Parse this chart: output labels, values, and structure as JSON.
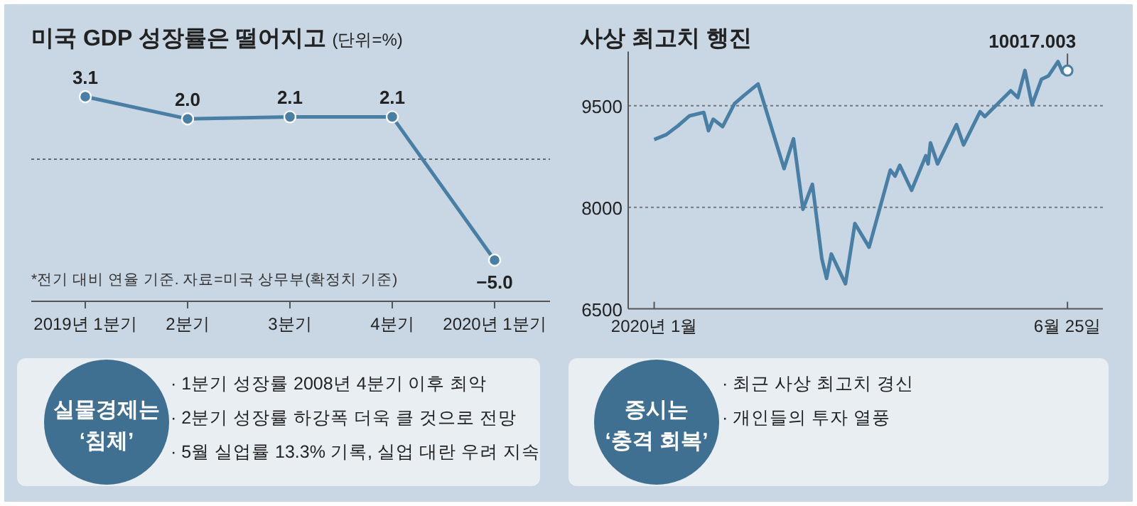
{
  "chart_data": [
    {
      "type": "line",
      "title": "미국 GDP 성장률은 떨어지고",
      "subtitle": "(단위=%)",
      "categories": [
        "2019년 1분기",
        "2분기",
        "3분기",
        "4분기",
        "2020년 1분기"
      ],
      "values": [
        3.1,
        2.0,
        2.1,
        2.1,
        -5.0
      ],
      "color": "#4a7fa5",
      "marker": "circle",
      "data_labels": true,
      "value_labels": [
        "3.1",
        "2.0",
        "2.1",
        "2.1",
        "−5.0"
      ],
      "tick_labels": "x",
      "ref_lines": [
        {
          "axis": "y",
          "value": 0,
          "line_style": "dotted",
          "color": "#666666"
        }
      ],
      "annotations": [
        "*전기 대비 연율 기준. 자료=미국 상무부(확정치 기준)"
      ]
    },
    {
      "type": "line",
      "title": "사상 최고치 행진",
      "color": "#4a7fa5",
      "grid": "y",
      "x": [
        "2020-01-02",
        "2020-01-07",
        "2020-01-12",
        "2020-01-17",
        "2020-01-23",
        "2020-01-25",
        "2020-01-27",
        "2020-01-31",
        "2020-02-05",
        "2020-02-09",
        "2020-02-15",
        "2020-02-26",
        "2020-03-01",
        "2020-03-05",
        "2020-03-09",
        "2020-03-13",
        "2020-03-15",
        "2020-03-17",
        "2020-03-23",
        "2020-03-27",
        "2020-04-02",
        "2020-04-11",
        "2020-04-13",
        "2020-04-15",
        "2020-04-20",
        "2020-04-26",
        "2020-04-27",
        "2020-04-28",
        "2020-05-01",
        "2020-05-09",
        "2020-05-12",
        "2020-05-19",
        "2020-05-21",
        "2020-06-01",
        "2020-06-04",
        "2020-06-07",
        "2020-06-10",
        "2020-06-14",
        "2020-06-17",
        "2020-06-21",
        "2020-06-23",
        "2020-06-25"
      ],
      "values": [
        9000,
        9070,
        9200,
        9350,
        9400,
        9130,
        9300,
        9190,
        9530,
        9650,
        9820,
        8570,
        9010,
        7970,
        8340,
        7240,
        6950,
        7310,
        6870,
        7760,
        7410,
        8550,
        8460,
        8620,
        8250,
        8760,
        8640,
        8950,
        8640,
        9220,
        8920,
        9410,
        9340,
        9720,
        9620,
        10020,
        9510,
        9890,
        9940,
        10150,
        9990,
        10017.003
      ],
      "xlim": [
        "2019-12-22",
        "2020-07-10"
      ],
      "xticks": [
        {
          "value": "2020-01-02",
          "label": "2020년 1월"
        },
        {
          "value": "2020-06-25",
          "label": "6월 25일"
        }
      ],
      "ylim": [
        6500,
        10300
      ],
      "yticks": [
        6500,
        8000,
        9500
      ],
      "annotations": [
        {
          "text": "10017.003",
          "x": "2020-06-25",
          "y": 10017.003
        }
      ]
    },
    {
      "type": "other",
      "title": "실물경제는 ‘침체’",
      "annotations": [
        "· 1분기 성장률 2008년 4분기 이후 최악",
        "· 2분기 성장률 하강폭 더욱 클 것으로 전망",
        "· 5월 실업률 13.3% 기록, 실업 대란 우려 지속"
      ]
    },
    {
      "type": "other",
      "title": "증시는 ‘충격 회복’",
      "annotations": [
        "· 최근 사상 최고치 경신",
        "· 개인들의 투자 열풍"
      ]
    }
  ]
}
